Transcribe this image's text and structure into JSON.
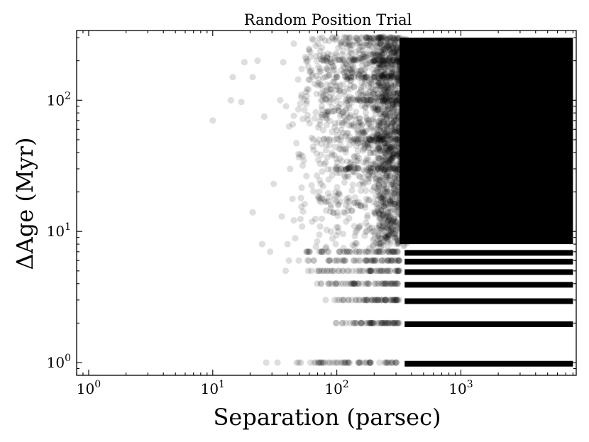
{
  "chart_data": {
    "type": "scatter",
    "title": "Random Position Trial",
    "xlabel": "Separation (parsec)",
    "ylabel": "ΔAge (Myr)",
    "xscale": "log",
    "yscale": "log",
    "xlim": [
      0.8,
      8500
    ],
    "ylim": [
      0.8,
      340
    ],
    "grid": false,
    "x_ticks": [
      {
        "value": 1,
        "base": "10",
        "exp": "0"
      },
      {
        "value": 10,
        "base": "10",
        "exp": "1"
      },
      {
        "value": 100,
        "base": "10",
        "exp": "2"
      },
      {
        "value": 1000,
        "base": "10",
        "exp": "3"
      }
    ],
    "y_ticks": [
      {
        "value": 1,
        "base": "10",
        "exp": "0"
      },
      {
        "value": 10,
        "base": "10",
        "exp": "1"
      },
      {
        "value": 100,
        "base": "10",
        "exp": "2"
      }
    ],
    "marker_color": "#000000",
    "marker_opacity": 0.13,
    "x_dense_from": 320,
    "x_max": 8000,
    "discrete_age_levels": [
      1,
      2,
      3,
      4,
      5,
      6,
      7
    ],
    "continuous_age_range": [
      8,
      300
    ],
    "sparse_points": [
      {
        "x": 10,
        "y": 70
      },
      {
        "x": 14,
        "y": 100
      },
      {
        "x": 14.5,
        "y": 150
      },
      {
        "x": 17,
        "y": 97
      },
      {
        "x": 21,
        "y": 150
      },
      {
        "x": 18,
        "y": 195
      },
      {
        "x": 21,
        "y": 14
      },
      {
        "x": 25,
        "y": 8
      },
      {
        "x": 23,
        "y": 200
      },
      {
        "x": 26,
        "y": 75
      },
      {
        "x": 29,
        "y": 7
      },
      {
        "x": 31,
        "y": 23
      },
      {
        "x": 36,
        "y": 13
      },
      {
        "x": 37,
        "y": 195
      },
      {
        "x": 42,
        "y": 30
      },
      {
        "x": 45,
        "y": 270
      },
      {
        "x": 35,
        "y": 100
      },
      {
        "x": 39,
        "y": 90
      },
      {
        "x": 27,
        "y": 1
      },
      {
        "x": 40,
        "y": 8
      }
    ]
  }
}
